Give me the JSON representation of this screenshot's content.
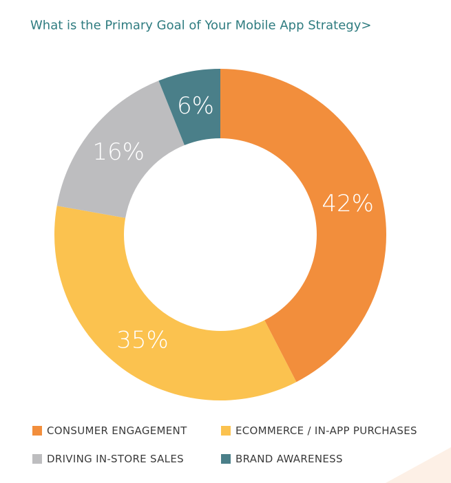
{
  "chart_data": {
    "type": "donut",
    "title": "What is the Primary Goal of Your Mobile App Strategy>",
    "categories": [
      "CONSUMER ENGAGEMENT",
      "ECOMMERCE / IN-APP PURCHASES",
      "DRIVING IN-STORE SALES",
      "BRAND AWARENESS"
    ],
    "values": [
      42,
      35,
      16,
      6
    ],
    "value_labels": [
      "42%",
      "35%",
      "16%",
      "6%"
    ],
    "colors": [
      "#f28e3c",
      "#fbc24f",
      "#bdbdbf",
      "#4a7f89"
    ]
  }
}
